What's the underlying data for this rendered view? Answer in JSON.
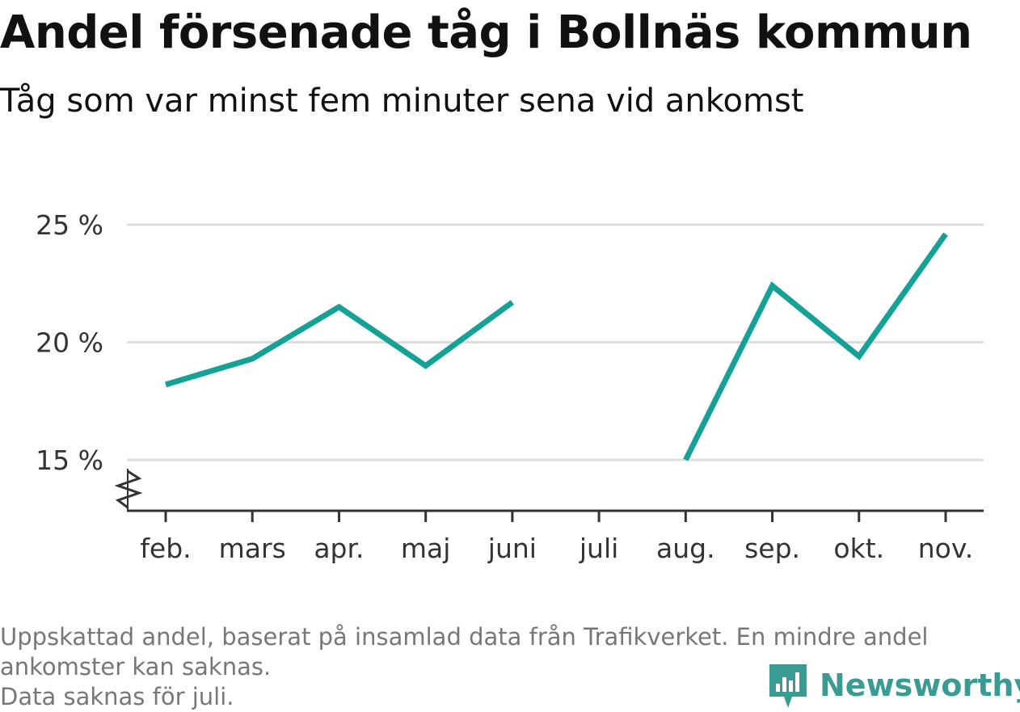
{
  "title": "Andel försenade tåg i Bollnäs kommun",
  "subtitle": "Tåg som var minst fem minuter sena vid ankomst",
  "footnote": {
    "line1": "Uppskattad andel, baserat på insamlad data från Trafikverket. En mindre andel",
    "line2": "ankomster kan saknas.",
    "line3": "Data saknas för juli."
  },
  "brand": {
    "name": "Newsworthy",
    "color": "#3a9b94"
  },
  "chart_data": {
    "type": "line",
    "categories": [
      "feb.",
      "mars",
      "apr.",
      "maj",
      "juni",
      "juli",
      "aug.",
      "sep.",
      "okt.",
      "nov."
    ],
    "series": [
      {
        "values": [
          18.2,
          19.3,
          21.5,
          19.0,
          21.7,
          null,
          15.0,
          22.4,
          19.4,
          24.6
        ],
        "color": "#16a196"
      }
    ],
    "y_ticks": [
      15,
      20,
      25
    ],
    "y_tick_labels": [
      "15 %",
      "20 %",
      "25 %"
    ],
    "ylim": [
      15,
      25
    ],
    "y_axis_break": true,
    "grid": true,
    "legend": "none"
  }
}
